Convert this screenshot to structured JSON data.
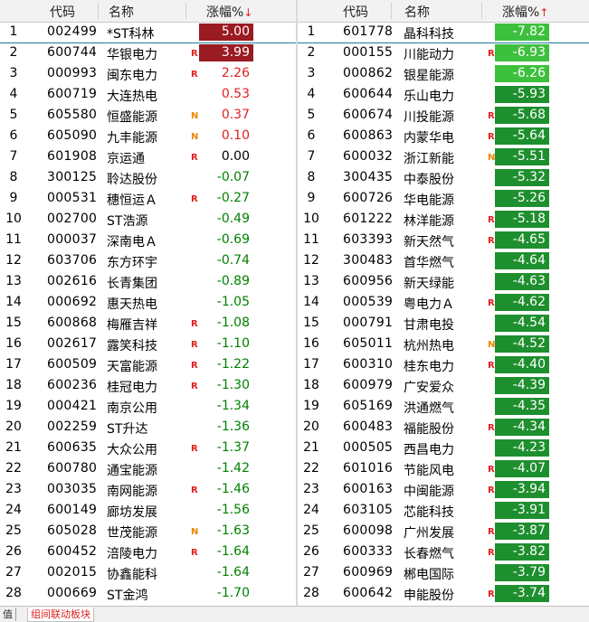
{
  "colors": {
    "up_text": "#e02020",
    "down_text": "#008000",
    "up_bg_strong": "#9b1b22",
    "down_bg_strong": "#1e8f2e",
    "down_bg_highlight": "#3dc03d"
  },
  "left": {
    "headers": {
      "code": "代码",
      "name": "名称",
      "change": "涨幅%",
      "sort_arrow": "↓"
    },
    "rows": [
      {
        "seq": "1",
        "code": "002499",
        "name": "*ST科林",
        "flag": "",
        "change": "5.00",
        "style": "up-bg"
      },
      {
        "seq": "2",
        "code": "600744",
        "name": "华银电力",
        "flag": "R",
        "change": "3.99",
        "style": "up-bg"
      },
      {
        "seq": "3",
        "code": "000993",
        "name": "闽东电力",
        "flag": "R",
        "change": "2.26",
        "style": "up"
      },
      {
        "seq": "4",
        "code": "600719",
        "name": "大连热电",
        "flag": "",
        "change": "0.53",
        "style": "up"
      },
      {
        "seq": "5",
        "code": "605580",
        "name": "恒盛能源",
        "flag": "N",
        "change": "0.37",
        "style": "up"
      },
      {
        "seq": "6",
        "code": "605090",
        "name": "九丰能源",
        "flag": "N",
        "change": "0.10",
        "style": "up"
      },
      {
        "seq": "7",
        "code": "601908",
        "name": "京运通",
        "flag": "R",
        "change": "0.00",
        "style": "flat"
      },
      {
        "seq": "8",
        "code": "300125",
        "name": "聆达股份",
        "flag": "",
        "change": "-0.07",
        "style": "down"
      },
      {
        "seq": "9",
        "code": "000531",
        "name": "穗恒运Ａ",
        "flag": "R",
        "change": "-0.27",
        "style": "down"
      },
      {
        "seq": "10",
        "code": "002700",
        "name": "ST浩源",
        "flag": "",
        "change": "-0.49",
        "style": "down"
      },
      {
        "seq": "11",
        "code": "000037",
        "name": "深南电Ａ",
        "flag": "",
        "change": "-0.69",
        "style": "down"
      },
      {
        "seq": "12",
        "code": "603706",
        "name": "东方环宇",
        "flag": "",
        "change": "-0.74",
        "style": "down"
      },
      {
        "seq": "13",
        "code": "002616",
        "name": "长青集团",
        "flag": "",
        "change": "-0.89",
        "style": "down"
      },
      {
        "seq": "14",
        "code": "000692",
        "name": "惠天热电",
        "flag": "",
        "change": "-1.05",
        "style": "down"
      },
      {
        "seq": "15",
        "code": "600868",
        "name": "梅雁吉祥",
        "flag": "R",
        "change": "-1.08",
        "style": "down"
      },
      {
        "seq": "16",
        "code": "002617",
        "name": "露笑科技",
        "flag": "R",
        "change": "-1.10",
        "style": "down"
      },
      {
        "seq": "17",
        "code": "600509",
        "name": "天富能源",
        "flag": "R",
        "change": "-1.22",
        "style": "down"
      },
      {
        "seq": "18",
        "code": "600236",
        "name": "桂冠电力",
        "flag": "R",
        "change": "-1.30",
        "style": "down"
      },
      {
        "seq": "19",
        "code": "000421",
        "name": "南京公用",
        "flag": "",
        "change": "-1.34",
        "style": "down"
      },
      {
        "seq": "20",
        "code": "002259",
        "name": "ST升达",
        "flag": "",
        "change": "-1.36",
        "style": "down"
      },
      {
        "seq": "21",
        "code": "600635",
        "name": "大众公用",
        "flag": "R",
        "change": "-1.37",
        "style": "down"
      },
      {
        "seq": "22",
        "code": "600780",
        "name": "通宝能源",
        "flag": "",
        "change": "-1.42",
        "style": "down"
      },
      {
        "seq": "23",
        "code": "003035",
        "name": "南网能源",
        "flag": "R",
        "change": "-1.46",
        "style": "down"
      },
      {
        "seq": "24",
        "code": "600149",
        "name": "廊坊发展",
        "flag": "",
        "change": "-1.56",
        "style": "down"
      },
      {
        "seq": "25",
        "code": "605028",
        "name": "世茂能源",
        "flag": "N",
        "change": "-1.63",
        "style": "down"
      },
      {
        "seq": "26",
        "code": "600452",
        "name": "涪陵电力",
        "flag": "R",
        "change": "-1.64",
        "style": "down"
      },
      {
        "seq": "27",
        "code": "002015",
        "name": "协鑫能科",
        "flag": "",
        "change": "-1.64",
        "style": "down"
      },
      {
        "seq": "28",
        "code": "000669",
        "name": "ST金鸿",
        "flag": "",
        "change": "-1.70",
        "style": "down"
      }
    ]
  },
  "right": {
    "headers": {
      "code": "代码",
      "name": "名称",
      "change": "涨幅%",
      "sort_arrow": "↑"
    },
    "rows": [
      {
        "seq": "1",
        "code": "601778",
        "name": "晶科科技",
        "flag": "",
        "change": "-7.82",
        "style": "down-hl"
      },
      {
        "seq": "2",
        "code": "000155",
        "name": "川能动力",
        "flag": "R",
        "change": "-6.93",
        "style": "down-hl"
      },
      {
        "seq": "3",
        "code": "000862",
        "name": "银星能源",
        "flag": "",
        "change": "-6.26",
        "style": "down-hl"
      },
      {
        "seq": "4",
        "code": "600644",
        "name": "乐山电力",
        "flag": "",
        "change": "-5.93",
        "style": "down-bg"
      },
      {
        "seq": "5",
        "code": "600674",
        "name": "川投能源",
        "flag": "R",
        "change": "-5.68",
        "style": "down-bg"
      },
      {
        "seq": "6",
        "code": "600863",
        "name": "内蒙华电",
        "flag": "R",
        "change": "-5.64",
        "style": "down-bg"
      },
      {
        "seq": "7",
        "code": "600032",
        "name": "浙江新能",
        "flag": "N",
        "change": "-5.51",
        "style": "down-bg"
      },
      {
        "seq": "8",
        "code": "300435",
        "name": "中泰股份",
        "flag": "",
        "change": "-5.32",
        "style": "down-bg"
      },
      {
        "seq": "9",
        "code": "600726",
        "name": "华电能源",
        "flag": "",
        "change": "-5.26",
        "style": "down-bg"
      },
      {
        "seq": "10",
        "code": "601222",
        "name": "林洋能源",
        "flag": "R",
        "change": "-5.18",
        "style": "down-bg"
      },
      {
        "seq": "11",
        "code": "603393",
        "name": "新天然气",
        "flag": "R",
        "change": "-4.65",
        "style": "down-bg"
      },
      {
        "seq": "12",
        "code": "300483",
        "name": "首华燃气",
        "flag": "",
        "change": "-4.64",
        "style": "down-bg"
      },
      {
        "seq": "13",
        "code": "600956",
        "name": "新天绿能",
        "flag": "",
        "change": "-4.63",
        "style": "down-bg"
      },
      {
        "seq": "14",
        "code": "000539",
        "name": "粤电力Ａ",
        "flag": "R",
        "change": "-4.62",
        "style": "down-bg"
      },
      {
        "seq": "15",
        "code": "000791",
        "name": "甘肃电投",
        "flag": "",
        "change": "-4.54",
        "style": "down-bg"
      },
      {
        "seq": "16",
        "code": "605011",
        "name": "杭州热电",
        "flag": "N",
        "change": "-4.52",
        "style": "down-bg"
      },
      {
        "seq": "17",
        "code": "600310",
        "name": "桂东电力",
        "flag": "R",
        "change": "-4.40",
        "style": "down-bg"
      },
      {
        "seq": "18",
        "code": "600979",
        "name": "广安爱众",
        "flag": "",
        "change": "-4.39",
        "style": "down-bg"
      },
      {
        "seq": "19",
        "code": "605169",
        "name": "洪通燃气",
        "flag": "",
        "change": "-4.35",
        "style": "down-bg"
      },
      {
        "seq": "20",
        "code": "600483",
        "name": "福能股份",
        "flag": "R",
        "change": "-4.34",
        "style": "down-bg"
      },
      {
        "seq": "21",
        "code": "000505",
        "name": "西昌电力",
        "flag": "",
        "change": "-4.23",
        "style": "down-bg"
      },
      {
        "seq": "22",
        "code": "601016",
        "name": "节能风电",
        "flag": "R",
        "change": "-4.07",
        "style": "down-bg"
      },
      {
        "seq": "23",
        "code": "600163",
        "name": "中闽能源",
        "flag": "R",
        "change": "-3.94",
        "style": "down-bg"
      },
      {
        "seq": "24",
        "code": "603105",
        "name": "芯能科技",
        "flag": "",
        "change": "-3.91",
        "style": "down-bg"
      },
      {
        "seq": "25",
        "code": "600098",
        "name": "广州发展",
        "flag": "R",
        "change": "-3.87",
        "style": "down-bg"
      },
      {
        "seq": "26",
        "code": "600333",
        "name": "长春燃气",
        "flag": "R",
        "change": "-3.82",
        "style": "down-bg"
      },
      {
        "seq": "27",
        "code": "600969",
        "name": "郴电国际",
        "flag": "",
        "change": "-3.79",
        "style": "down-bg"
      },
      {
        "seq": "28",
        "code": "600642",
        "name": "申能股份",
        "flag": "R",
        "change": "-3.74",
        "style": "down-bg"
      }
    ]
  },
  "bottom_tabs": {
    "value_tab": "值",
    "group_tab": "组间联动板块"
  }
}
